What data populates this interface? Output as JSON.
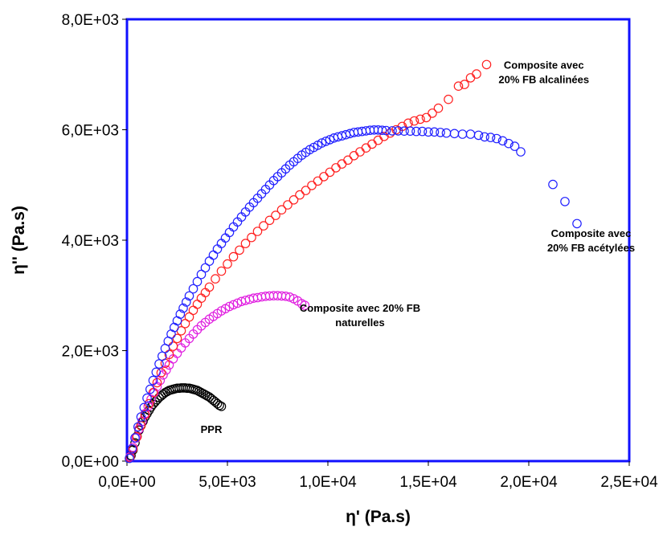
{
  "chart_data": {
    "type": "scatter",
    "title": "",
    "xlabel": "η' (Pa.s)",
    "ylabel": "η'' (Pa.s)",
    "xlim": [
      0,
      25000
    ],
    "ylim": [
      0,
      8000
    ],
    "x_ticks": [
      "0,0E+00",
      "5,0E+03",
      "1,0E+04",
      "1,5E+04",
      "2,0E+04",
      "2,5E+04"
    ],
    "y_ticks": [
      "0,0E+00",
      "2,0E+03",
      "4,0E+03",
      "6,0E+03",
      "8,0E+03"
    ],
    "grid": false,
    "series": [
      {
        "name": "PPR",
        "color": "#000000",
        "points": [
          [
            200,
            100
          ],
          [
            300,
            200
          ],
          [
            400,
            330
          ],
          [
            500,
            450
          ],
          [
            600,
            560
          ],
          [
            700,
            650
          ],
          [
            800,
            720
          ],
          [
            900,
            800
          ],
          [
            1000,
            860
          ],
          [
            1100,
            920
          ],
          [
            1200,
            980
          ],
          [
            1300,
            1030
          ],
          [
            1400,
            1070
          ],
          [
            1500,
            1110
          ],
          [
            1600,
            1150
          ],
          [
            1700,
            1180
          ],
          [
            1800,
            1210
          ],
          [
            1900,
            1240
          ],
          [
            2000,
            1260
          ],
          [
            2100,
            1280
          ],
          [
            2200,
            1290
          ],
          [
            2300,
            1300
          ],
          [
            2400,
            1310
          ],
          [
            2500,
            1320
          ],
          [
            2600,
            1320
          ],
          [
            2700,
            1325
          ],
          [
            2800,
            1325
          ],
          [
            2900,
            1325
          ],
          [
            3000,
            1320
          ],
          [
            3100,
            1320
          ],
          [
            3200,
            1310
          ],
          [
            3300,
            1300
          ],
          [
            3400,
            1290
          ],
          [
            3500,
            1280
          ],
          [
            3600,
            1260
          ],
          [
            3700,
            1240
          ],
          [
            3800,
            1220
          ],
          [
            3900,
            1200
          ],
          [
            4000,
            1180
          ],
          [
            4100,
            1160
          ],
          [
            4200,
            1130
          ],
          [
            4300,
            1100
          ],
          [
            4400,
            1070
          ],
          [
            4500,
            1040
          ],
          [
            4600,
            1010
          ],
          [
            4700,
            990
          ]
        ]
      },
      {
        "name": "Composite avec 20% FB naturelles",
        "color": "#e020e0",
        "points": [
          [
            150,
            80
          ],
          [
            300,
            250
          ],
          [
            450,
            420
          ],
          [
            600,
            580
          ],
          [
            750,
            720
          ],
          [
            900,
            860
          ],
          [
            1050,
            990
          ],
          [
            1200,
            1120
          ],
          [
            1350,
            1240
          ],
          [
            1500,
            1350
          ],
          [
            1650,
            1460
          ],
          [
            1800,
            1560
          ],
          [
            1950,
            1650
          ],
          [
            2100,
            1740
          ],
          [
            2300,
            1850
          ],
          [
            2500,
            1950
          ],
          [
            2700,
            2050
          ],
          [
            2900,
            2140
          ],
          [
            3100,
            2220
          ],
          [
            3300,
            2300
          ],
          [
            3500,
            2380
          ],
          [
            3700,
            2450
          ],
          [
            3900,
            2510
          ],
          [
            4100,
            2570
          ],
          [
            4300,
            2620
          ],
          [
            4500,
            2670
          ],
          [
            4700,
            2720
          ],
          [
            4900,
            2760
          ],
          [
            5100,
            2800
          ],
          [
            5300,
            2830
          ],
          [
            5500,
            2860
          ],
          [
            5700,
            2890
          ],
          [
            5900,
            2910
          ],
          [
            6100,
            2930
          ],
          [
            6300,
            2950
          ],
          [
            6500,
            2960
          ],
          [
            6700,
            2975
          ],
          [
            6900,
            2985
          ],
          [
            7100,
            2990
          ],
          [
            7300,
            2995
          ],
          [
            7500,
            2995
          ],
          [
            7700,
            2990
          ],
          [
            7900,
            2985
          ],
          [
            8100,
            2970
          ],
          [
            8300,
            2940
          ],
          [
            8500,
            2900
          ],
          [
            8700,
            2850
          ],
          [
            8850,
            2820
          ]
        ]
      },
      {
        "name": "Composite avec 20% FB alcalinées",
        "color": "#ff2020",
        "points": [
          [
            150,
            60
          ],
          [
            300,
            220
          ],
          [
            500,
            440
          ],
          [
            700,
            640
          ],
          [
            900,
            840
          ],
          [
            1100,
            1040
          ],
          [
            1300,
            1240
          ],
          [
            1500,
            1420
          ],
          [
            1700,
            1600
          ],
          [
            1900,
            1770
          ],
          [
            2100,
            1930
          ],
          [
            2300,
            2080
          ],
          [
            2500,
            2220
          ],
          [
            2700,
            2360
          ],
          [
            2900,
            2490
          ],
          [
            3100,
            2610
          ],
          [
            3300,
            2730
          ],
          [
            3500,
            2840
          ],
          [
            3700,
            2950
          ],
          [
            3900,
            3050
          ],
          [
            4100,
            3150
          ],
          [
            4400,
            3300
          ],
          [
            4700,
            3440
          ],
          [
            5000,
            3570
          ],
          [
            5300,
            3700
          ],
          [
            5600,
            3820
          ],
          [
            5900,
            3940
          ],
          [
            6200,
            4050
          ],
          [
            6500,
            4160
          ],
          [
            6800,
            4260
          ],
          [
            7100,
            4360
          ],
          [
            7400,
            4450
          ],
          [
            7700,
            4550
          ],
          [
            8000,
            4640
          ],
          [
            8300,
            4730
          ],
          [
            8600,
            4820
          ],
          [
            8900,
            4900
          ],
          [
            9200,
            4990
          ],
          [
            9500,
            5070
          ],
          [
            9800,
            5150
          ],
          [
            10100,
            5230
          ],
          [
            10400,
            5310
          ],
          [
            10700,
            5380
          ],
          [
            11000,
            5450
          ],
          [
            11300,
            5530
          ],
          [
            11600,
            5600
          ],
          [
            11900,
            5670
          ],
          [
            12200,
            5740
          ],
          [
            12500,
            5810
          ],
          [
            12800,
            5880
          ],
          [
            13100,
            5940
          ],
          [
            13400,
            6000
          ],
          [
            13700,
            6060
          ],
          [
            14000,
            6120
          ],
          [
            14300,
            6160
          ],
          [
            14600,
            6190
          ],
          [
            14900,
            6220
          ],
          [
            15200,
            6300
          ],
          [
            15500,
            6390
          ],
          [
            16000,
            6550
          ],
          [
            16500,
            6790
          ],
          [
            16800,
            6820
          ],
          [
            17100,
            6940
          ],
          [
            17400,
            7010
          ],
          [
            17900,
            7180
          ]
        ]
      },
      {
        "name": "Composite avec 20% FB acétylées",
        "color": "#2020ff",
        "points": [
          [
            120,
            50
          ],
          [
            250,
            220
          ],
          [
            400,
            420
          ],
          [
            550,
            620
          ],
          [
            700,
            800
          ],
          [
            850,
            970
          ],
          [
            1000,
            1140
          ],
          [
            1150,
            1300
          ],
          [
            1300,
            1460
          ],
          [
            1450,
            1610
          ],
          [
            1600,
            1760
          ],
          [
            1750,
            1900
          ],
          [
            1900,
            2040
          ],
          [
            2050,
            2170
          ],
          [
            2200,
            2300
          ],
          [
            2350,
            2420
          ],
          [
            2500,
            2540
          ],
          [
            2650,
            2660
          ],
          [
            2800,
            2770
          ],
          [
            2950,
            2880
          ],
          [
            3100,
            2990
          ],
          [
            3300,
            3120
          ],
          [
            3500,
            3250
          ],
          [
            3700,
            3380
          ],
          [
            3900,
            3500
          ],
          [
            4100,
            3620
          ],
          [
            4300,
            3730
          ],
          [
            4500,
            3840
          ],
          [
            4700,
            3940
          ],
          [
            4900,
            4040
          ],
          [
            5100,
            4140
          ],
          [
            5300,
            4240
          ],
          [
            5500,
            4330
          ],
          [
            5700,
            4420
          ],
          [
            5900,
            4510
          ],
          [
            6100,
            4600
          ],
          [
            6300,
            4680
          ],
          [
            6500,
            4760
          ],
          [
            6700,
            4840
          ],
          [
            6900,
            4920
          ],
          [
            7100,
            5000
          ],
          [
            7300,
            5080
          ],
          [
            7500,
            5150
          ],
          [
            7700,
            5220
          ],
          [
            7900,
            5290
          ],
          [
            8100,
            5360
          ],
          [
            8300,
            5420
          ],
          [
            8500,
            5480
          ],
          [
            8700,
            5540
          ],
          [
            8900,
            5590
          ],
          [
            9100,
            5640
          ],
          [
            9300,
            5680
          ],
          [
            9500,
            5720
          ],
          [
            9700,
            5760
          ],
          [
            9900,
            5790
          ],
          [
            10100,
            5820
          ],
          [
            10300,
            5850
          ],
          [
            10500,
            5870
          ],
          [
            10700,
            5890
          ],
          [
            10900,
            5910
          ],
          [
            11100,
            5930
          ],
          [
            11300,
            5950
          ],
          [
            11500,
            5960
          ],
          [
            11700,
            5970
          ],
          [
            11900,
            5980
          ],
          [
            12100,
            5990
          ],
          [
            12300,
            5995
          ],
          [
            12500,
            5995
          ],
          [
            12700,
            5990
          ],
          [
            12900,
            5985
          ],
          [
            13200,
            5980
          ],
          [
            13500,
            5980
          ],
          [
            13800,
            5975
          ],
          [
            14100,
            5975
          ],
          [
            14400,
            5970
          ],
          [
            14700,
            5970
          ],
          [
            15000,
            5960
          ],
          [
            15300,
            5960
          ],
          [
            15600,
            5950
          ],
          [
            15900,
            5940
          ],
          [
            16300,
            5930
          ],
          [
            16700,
            5920
          ],
          [
            17100,
            5920
          ],
          [
            17500,
            5900
          ],
          [
            17800,
            5870
          ],
          [
            18100,
            5860
          ],
          [
            18400,
            5840
          ],
          [
            18700,
            5800
          ],
          [
            19000,
            5750
          ],
          [
            19300,
            5700
          ],
          [
            19600,
            5600
          ],
          [
            21200,
            5010
          ],
          [
            21800,
            4700
          ],
          [
            22400,
            4300
          ]
        ]
      }
    ],
    "annotations": [
      {
        "lines": [
          "Composite avec",
          "20% FB alcalinées"
        ],
        "x": 20750,
        "y": 7050
      },
      {
        "lines": [
          "Composite avec",
          "20% FB acétylées"
        ],
        "x": 23100,
        "y": 4000
      },
      {
        "lines": [
          "Composite avec 20% FB",
          "naturelles"
        ],
        "x": 11600,
        "y": 2650
      },
      {
        "lines": [
          "PPR"
        ],
        "x": 4200,
        "y": 580
      }
    ]
  }
}
